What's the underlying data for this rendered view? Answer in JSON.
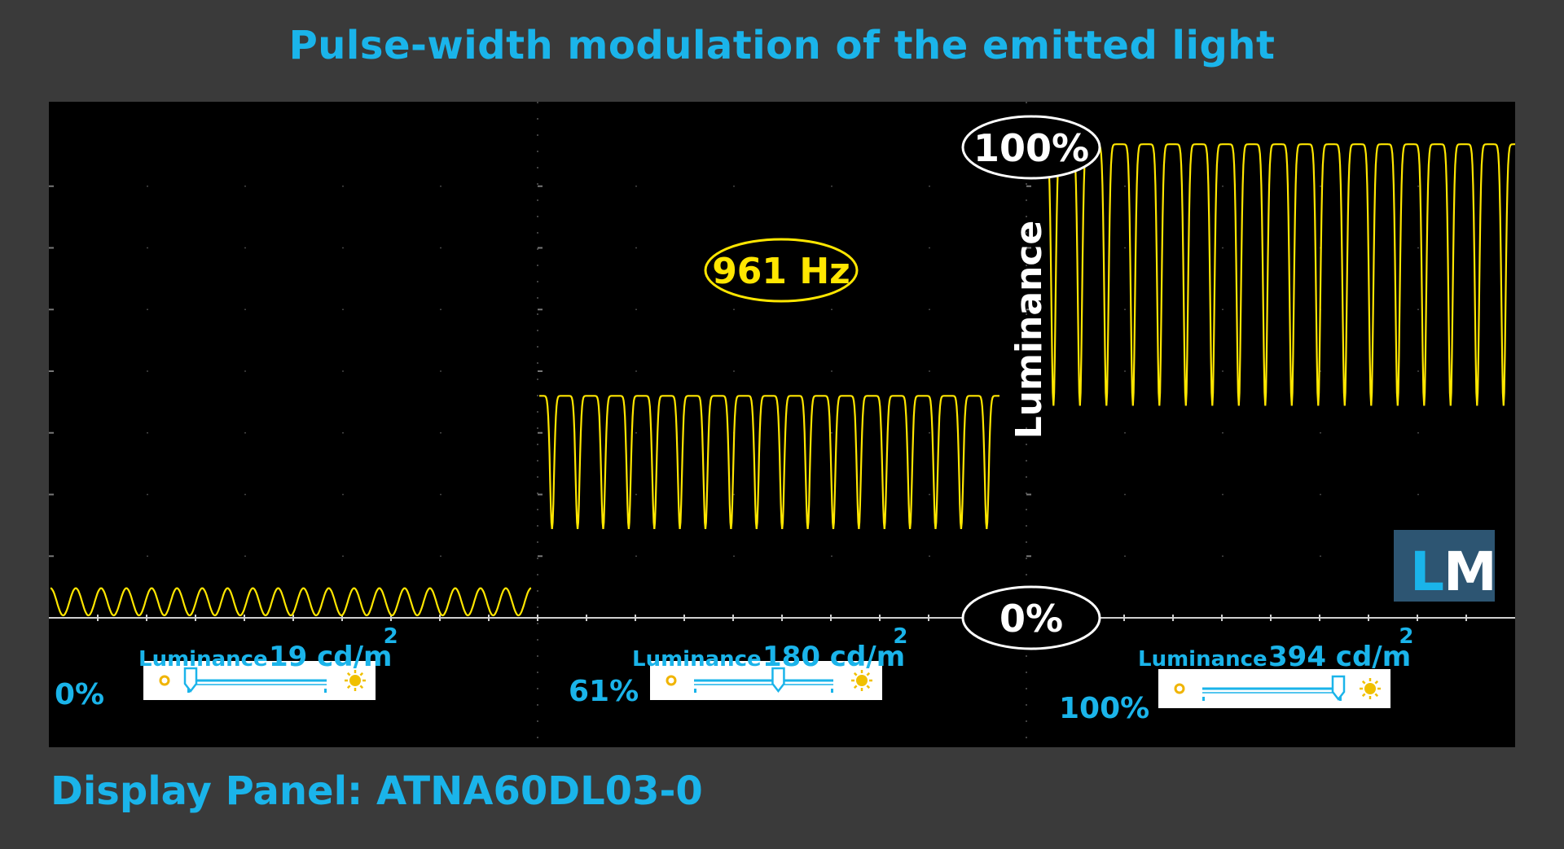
{
  "title": "Pulse-width modulation of the emitted light",
  "footer": "Display Panel: ATNA60DL03-0",
  "logo": {
    "text_l": "L",
    "text_m": "M"
  },
  "annotations": {
    "frequency": "961 Hz",
    "top_marker": "100%",
    "bottom_marker": "0%",
    "axis_label": "Luminance"
  },
  "chart_data": {
    "type": "line",
    "title": "Pulse-width modulation of the emitted light",
    "ylabel": "Luminance",
    "ylim": [
      0,
      100
    ],
    "frequency_hz": 961,
    "grid": true,
    "segments": [
      {
        "brightness_setting": "0%",
        "luminance_label": "Luminance",
        "luminance_value": "19 cd/m",
        "luminance_sup": "2",
        "luminance_cd_m2": 19,
        "slider_position": 0.0,
        "wave_high_pct": 6,
        "wave_low_pct": 0.5,
        "cycles": 19
      },
      {
        "brightness_setting": "61%",
        "luminance_label": "Luminance",
        "luminance_value": "180 cd/m",
        "luminance_sup": "2",
        "luminance_cd_m2": 180,
        "slider_position": 0.61,
        "wave_high_pct": 45,
        "wave_low_pct": 18,
        "cycles": 18
      },
      {
        "brightness_setting": "100%",
        "luminance_label": "Luminance",
        "luminance_value": "394 cd/m",
        "luminance_sup": "2",
        "luminance_cd_m2": 394,
        "slider_position": 1.0,
        "wave_high_pct": 96,
        "wave_low_pct": 43,
        "cycles": 18
      }
    ]
  },
  "colors": {
    "accent": "#1ab4ea",
    "trace": "#ffe600",
    "background": "#3a3a3a",
    "scope": "#000000",
    "logo_bg": "#2d5572"
  }
}
